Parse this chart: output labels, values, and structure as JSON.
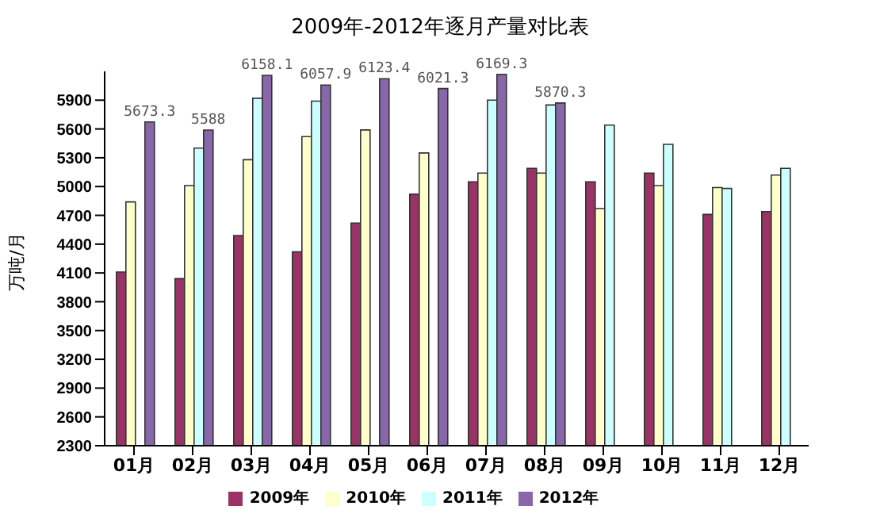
{
  "chart_data": {
    "type": "bar",
    "title": "2009年-2012年逐月产量对比表",
    "ylabel": "万吨/月",
    "categories": [
      "01月",
      "02月",
      "03月",
      "04月",
      "05月",
      "06月",
      "07月",
      "08月",
      "09月",
      "10月",
      "11月",
      "12月"
    ],
    "series": [
      {
        "name": "2009年",
        "color": "#993366",
        "values": [
          4110,
          4040,
          4490,
          4320,
          4620,
          4920,
          5050,
          5190,
          5050,
          5140,
          4710,
          4740
        ]
      },
      {
        "name": "2010年",
        "color": "#ffffcc",
        "values": [
          4840,
          5010,
          5280,
          5520,
          5590,
          5350,
          5140,
          5140,
          4770,
          5010,
          4990,
          5120
        ]
      },
      {
        "name": "2011年",
        "color": "#ccffff",
        "values": [
          null,
          5400,
          5920,
          5890,
          null,
          null,
          5900,
          5850,
          5640,
          5440,
          4980,
          5190
        ]
      },
      {
        "name": "2012年",
        "color": "#8866aa",
        "values": [
          5673.3,
          5588,
          6158.1,
          6057.9,
          6123.4,
          6021.3,
          6169.3,
          5870.3,
          null,
          null,
          null,
          null
        ],
        "value_labels": [
          "5673.3",
          "5588",
          "6158.1",
          "6057.9",
          "6123.4",
          "6021.3",
          "6169.3",
          "5870.3",
          null,
          null,
          null,
          null
        ]
      }
    ],
    "ylim": [
      2300,
      6200
    ],
    "yticks": [
      2300,
      2600,
      2900,
      3200,
      3500,
      3800,
      4100,
      4400,
      4700,
      5000,
      5300,
      5600,
      5900
    ],
    "grid": false,
    "legend": "bottom"
  }
}
